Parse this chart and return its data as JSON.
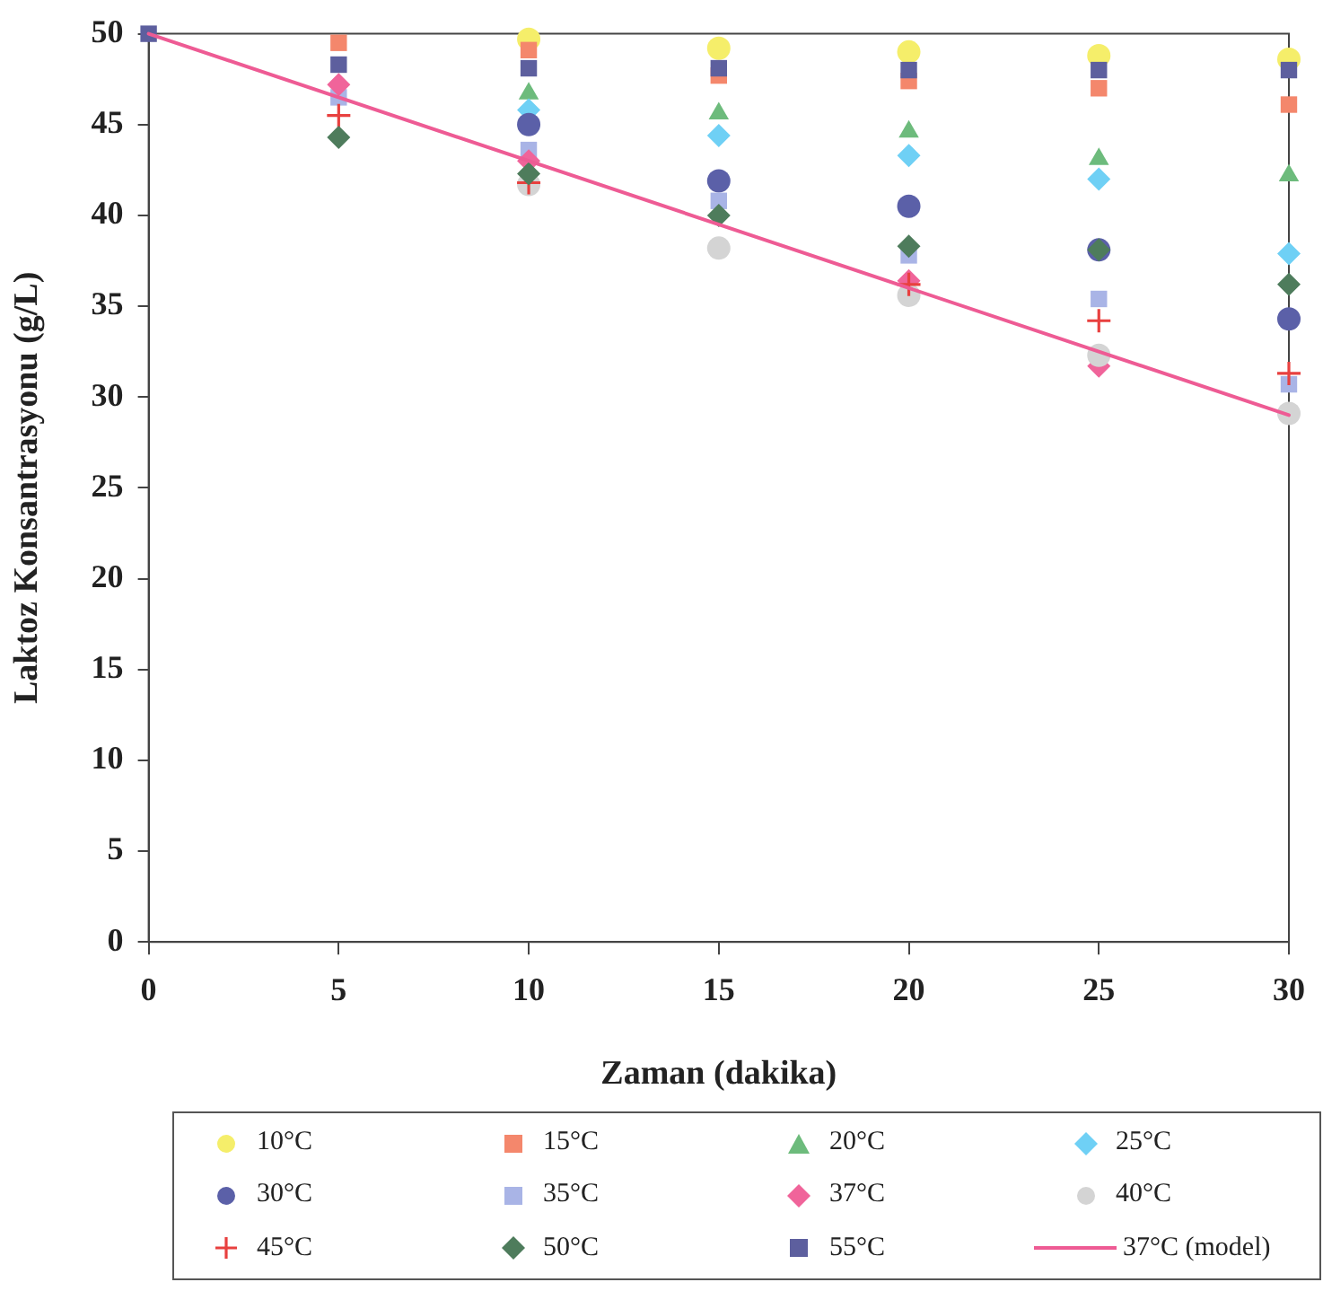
{
  "chart_data": {
    "type": "scatter",
    "xlabel": "Zaman (dakika)",
    "ylabel": "Laktoz Konsantrasyonu (g/L)",
    "x": [
      0,
      5,
      10,
      15,
      20,
      25,
      30
    ],
    "xlim": [
      0,
      30
    ],
    "xticks": [
      0,
      5,
      10,
      15,
      20,
      25,
      30
    ],
    "ylim": [
      0,
      50
    ],
    "yticks": [
      0,
      5,
      10,
      15,
      20,
      25,
      30,
      35,
      40,
      45,
      50
    ],
    "grid": false,
    "legend": "bottom",
    "series": [
      {
        "name": "10°C",
        "color": "#f5ee6a",
        "marker": "circle",
        "values": [
          null,
          null,
          49.7,
          49.2,
          49.0,
          48.8,
          48.6
        ]
      },
      {
        "name": "15°C",
        "color": "#f4876c",
        "marker": "square",
        "values": [
          null,
          49.5,
          49.1,
          47.7,
          47.4,
          47.0,
          46.1
        ]
      },
      {
        "name": "20°C",
        "color": "#6dbb7c",
        "marker": "triangle",
        "values": [
          null,
          null,
          46.7,
          45.6,
          44.6,
          43.1,
          42.2
        ]
      },
      {
        "name": "25°C",
        "color": "#6fd0f5",
        "marker": "diamond",
        "values": [
          null,
          null,
          45.8,
          44.4,
          43.3,
          42.0,
          37.9
        ]
      },
      {
        "name": "30°C",
        "color": "#5b60a8",
        "marker": "circle",
        "values": [
          null,
          null,
          45.0,
          41.9,
          40.5,
          38.1,
          34.3
        ]
      },
      {
        "name": "35°C",
        "color": "#a9b4e6",
        "marker": "square",
        "values": [
          null,
          46.5,
          43.6,
          40.8,
          37.8,
          35.4,
          30.7
        ]
      },
      {
        "name": "37°C",
        "color": "#f0649a",
        "marker": "diamond",
        "values": [
          null,
          47.2,
          43.0,
          null,
          36.4,
          31.7,
          null
        ]
      },
      {
        "name": "40°C",
        "color": "#d4d4d4",
        "marker": "circle",
        "values": [
          null,
          null,
          41.7,
          38.2,
          35.6,
          32.3,
          29.1
        ]
      },
      {
        "name": "45°C",
        "color": "#e8403f",
        "marker": "cross",
        "values": [
          null,
          45.5,
          41.8,
          null,
          36.2,
          34.2,
          31.3
        ]
      },
      {
        "name": "50°C",
        "color": "#4e7c5c",
        "marker": "diamond",
        "values": [
          null,
          44.3,
          42.3,
          40.0,
          38.3,
          38.1,
          36.2
        ]
      },
      {
        "name": "55°C",
        "color": "#5d5f9e",
        "marker": "square",
        "values": [
          50,
          48.3,
          48.1,
          48.1,
          48.0,
          48.0,
          48.0
        ]
      },
      {
        "name": "37°C (model)",
        "type": "line",
        "color": "#ee5b94",
        "marker": "none",
        "line_style": "solid",
        "x": [
          0,
          30
        ],
        "values": [
          50,
          29
        ]
      }
    ]
  }
}
